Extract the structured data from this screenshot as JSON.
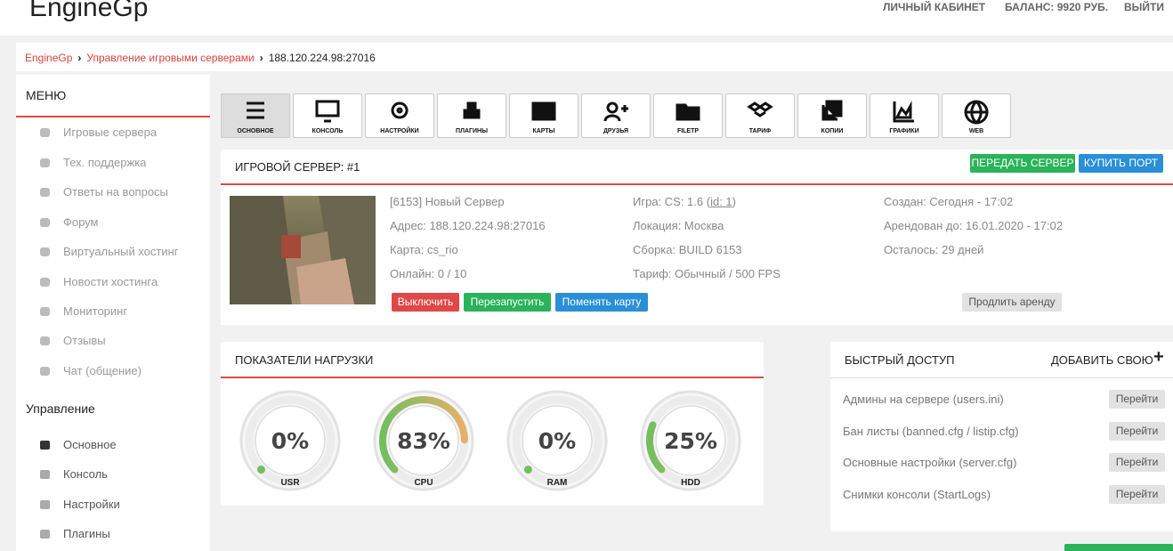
{
  "header": {
    "logo": "EngineGp",
    "nav": [
      "ЛИЧНЫЙ КАБИНЕТ",
      "БАЛАНС: 9920 РУБ.",
      "ВЫЙТИ"
    ]
  },
  "breadcrumb": [
    "EngineGp",
    "Управление игровыми серверами",
    "188.120.224.98:27016"
  ],
  "sidebar": {
    "menu_title": "МЕНЮ",
    "menu": [
      "Игровые сервера",
      "Тех. поддержка",
      "Ответы на вопросы",
      "Форум",
      "Виртуальный хостинг",
      "Новости хостинга",
      "Мониторинг",
      "Отзывы",
      "Чат (общение)"
    ],
    "section_title": "Управление",
    "section": [
      "Основное",
      "Консоль",
      "Настройки",
      "Плагины"
    ]
  },
  "toolbar": [
    "ОСНОВНОЕ",
    "КОНСОЛЬ",
    "НАСТРОЙКИ",
    "ПЛАГИНЫ",
    "КАРТЫ",
    "ДРУЗЬЯ",
    "FILETP",
    "ТАРИФ",
    "КОПИИ",
    "ГРАФИКИ",
    "WEB"
  ],
  "server": {
    "title": "ИГРОВОЙ СЕРВЕР: #1",
    "actions": [
      "ПЕРЕДАТЬ СЕРВЕР",
      "КУПИТЬ ПОРТ"
    ],
    "info": {
      "name": "[6153] Новый Сервер",
      "address": "Адрес: 188.120.224.98:27016",
      "map": "Карта: cs_rio",
      "online": "Онлайн: 0 / 10",
      "game_prefix": "Игра: CS: 1.6 (",
      "game_link": "id: 1",
      "game_suffix": ")",
      "location": "Локация: Москва",
      "build": "Сборка: BUILD 6153",
      "tariff": "Тариф: Обычный / 500 FPS",
      "created": "Создан: Сегодня - 17:02",
      "rented_until": "Арендован до: 16.01.2020 - 17:02",
      "remaining": "Осталось: 29 дней"
    },
    "controls": [
      "Выключить",
      "Перезапустить",
      "Поменять карту"
    ],
    "extend": "Продлить аренду"
  },
  "load": {
    "title": "ПОКАЗАТЕЛИ НАГРУЗКИ",
    "gauges": [
      {
        "label": "USR",
        "value": 0,
        "value_label": "0%"
      },
      {
        "label": "CPU",
        "value": 83,
        "value_label": "83%"
      },
      {
        "label": "RAM",
        "value": 0,
        "value_label": "0%"
      },
      {
        "label": "HDD",
        "value": 25,
        "value_label": "25%"
      }
    ]
  },
  "quick": {
    "title": "БЫСТРЫЙ ДОСТУП",
    "add": "ДОБАВИТЬ СВОЮ",
    "add_icon": "+",
    "rows": [
      {
        "label": "Админы на сервере (users.ini)",
        "button": "Перейти"
      },
      {
        "label": "Бан листы (banned.cfg / listip.cfg)",
        "button": "Перейти"
      },
      {
        "label": "Основные настройки (server.cfg)",
        "button": "Перейти"
      },
      {
        "label": "Снимки консоли (StartLogs)",
        "button": "Перейти"
      }
    ]
  }
}
